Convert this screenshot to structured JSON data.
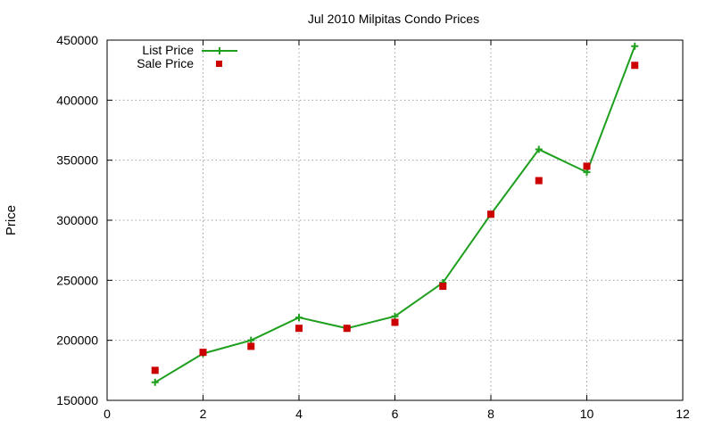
{
  "chart_data": {
    "type": "line",
    "title": "Jul 2010 Milpitas Condo Prices",
    "xlabel": "",
    "ylabel": "Price",
    "xlim": [
      0,
      12
    ],
    "ylim": [
      150000,
      450000
    ],
    "xticks": [
      0,
      2,
      4,
      6,
      8,
      10,
      12
    ],
    "yticks": [
      150000,
      200000,
      250000,
      300000,
      350000,
      400000,
      450000
    ],
    "grid": true,
    "legend_position": "top-left",
    "series": [
      {
        "name": "List Price",
        "style": "line-with-plus-markers",
        "color": "#1e9f1e",
        "x": [
          1,
          2,
          3,
          4,
          5,
          6,
          7,
          8,
          9,
          10,
          11
        ],
        "values": [
          165000,
          189000,
          200000,
          219000,
          210000,
          220000,
          248000,
          305000,
          359000,
          340000,
          445000
        ]
      },
      {
        "name": "Sale Price",
        "style": "square-markers",
        "color": "#cc0000",
        "x": [
          1,
          2,
          3,
          4,
          5,
          6,
          7,
          8,
          9,
          10,
          11
        ],
        "values": [
          175000,
          190000,
          195000,
          210000,
          210000,
          215000,
          245000,
          305000,
          333000,
          345000,
          429000
        ]
      }
    ]
  }
}
